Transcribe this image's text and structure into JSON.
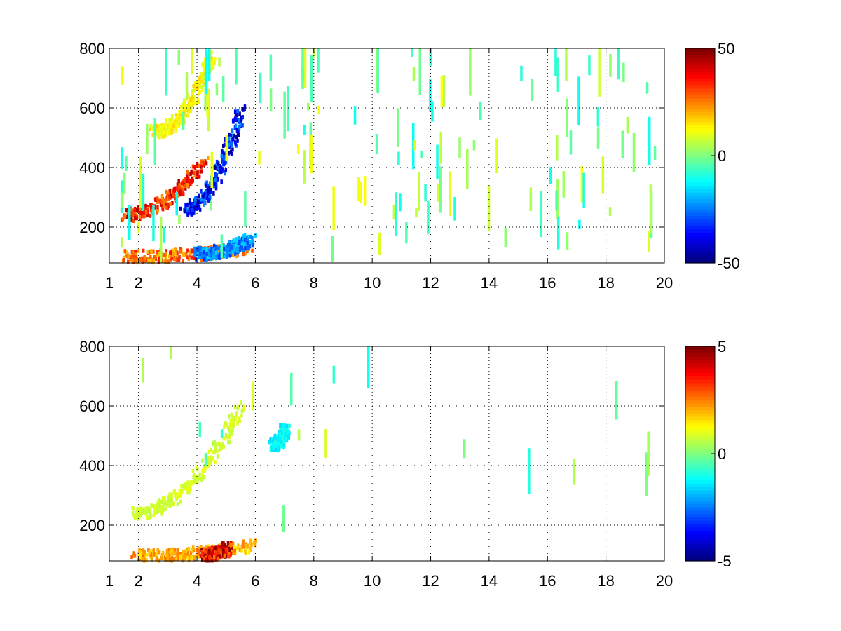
{
  "chart_data": [
    {
      "type": "heatmap",
      "title": "",
      "xlabel": "",
      "ylabel": "",
      "xlim": [
        1,
        20
      ],
      "ylim": [
        80,
        800
      ],
      "xticks": [
        1,
        2,
        4,
        6,
        8,
        10,
        12,
        14,
        16,
        18,
        20
      ],
      "yticks": [
        200,
        400,
        600,
        800
      ],
      "grid": true,
      "colormap": "jet",
      "colorbar": {
        "min": -50,
        "max": 50,
        "ticks": [
          50,
          0,
          -50
        ]
      },
      "features": [
        {
          "name": "rising ridge positive",
          "x_start": 1.5,
          "y_start": 240,
          "x_end": 4.2,
          "y_end": 420,
          "value": 40
        },
        {
          "name": "rising ridge negative",
          "x_start": 3.5,
          "y_start": 260,
          "x_end": 5.5,
          "y_end": 600,
          "value": -42
        },
        {
          "name": "upper yellow band",
          "x_start": 2.5,
          "y_start": 520,
          "x_end": 4.5,
          "y_end": 780,
          "value": 15
        },
        {
          "name": "low band",
          "x_start": 1.5,
          "y_start": 100,
          "x_end": 5.8,
          "y_end": 130,
          "value": 32
        },
        {
          "name": "low band negative",
          "x_start": 4.0,
          "y_start": 110,
          "x_end": 5.8,
          "y_end": 160,
          "value": -28
        }
      ]
    },
    {
      "type": "heatmap",
      "title": "",
      "xlabel": "",
      "ylabel": "",
      "xlim": [
        1,
        20
      ],
      "ylim": [
        80,
        800
      ],
      "xticks": [
        1,
        2,
        4,
        6,
        8,
        10,
        12,
        14,
        16,
        18,
        20
      ],
      "yticks": [
        200,
        400,
        600,
        800
      ],
      "grid": true,
      "colormap": "jet",
      "colorbar": {
        "min": -5,
        "max": 5,
        "ticks": [
          5,
          0,
          -5
        ]
      },
      "features": [
        {
          "name": "rising ridge",
          "x_start": 1.8,
          "y_start": 240,
          "x_end": 5.5,
          "y_end": 600,
          "value": 1
        },
        {
          "name": "low band",
          "x_start": 1.8,
          "y_start": 95,
          "x_end": 5.8,
          "y_end": 130,
          "value": 2.5
        },
        {
          "name": "low band hot spot",
          "x_start": 4.2,
          "y_start": 100,
          "x_end": 5.0,
          "y_end": 120,
          "value": 4.5
        },
        {
          "name": "isolated cyan patch",
          "x_start": 6.6,
          "y_start": 470,
          "x_end": 7.0,
          "y_end": 520,
          "value": -1.5
        }
      ]
    }
  ]
}
